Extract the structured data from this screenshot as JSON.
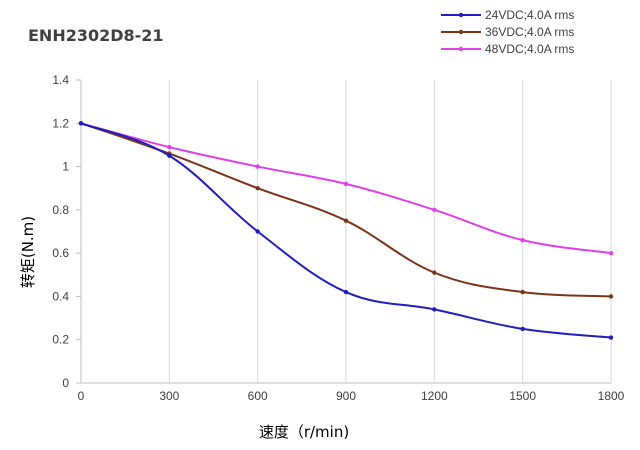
{
  "chart_data": {
    "type": "line",
    "title": "ENH2302D8-21",
    "xlabel": "速度（r/min)",
    "ylabel": "转矩(N.m)",
    "x": [
      0,
      300,
      600,
      900,
      1200,
      1500,
      1800
    ],
    "x_tick_labels": [
      "0",
      "300",
      "600",
      "900",
      "1200",
      "1500",
      "1800"
    ],
    "y_tick_labels": [
      "0",
      "0.2",
      "0.4",
      "0.6",
      "0.8",
      "1",
      "1.2",
      "1.4"
    ],
    "xlim": [
      0,
      1800
    ],
    "ylim": [
      0,
      1.4
    ],
    "grid": "vertical",
    "legend_position": "top-right",
    "series": [
      {
        "name": "24VDC;4.0A rms",
        "color": "#1f1fbf",
        "values": [
          1.2,
          1.05,
          0.7,
          0.42,
          0.34,
          0.25,
          0.21
        ]
      },
      {
        "name": "36VDC;4.0A rms",
        "color": "#7b3418",
        "values": [
          1.2,
          1.06,
          0.9,
          0.75,
          0.51,
          0.42,
          0.4
        ]
      },
      {
        "name": "48VDC;4.0A rms",
        "color": "#e040e8",
        "values": [
          1.2,
          1.09,
          1.0,
          0.92,
          0.8,
          0.66,
          0.6
        ]
      }
    ]
  }
}
